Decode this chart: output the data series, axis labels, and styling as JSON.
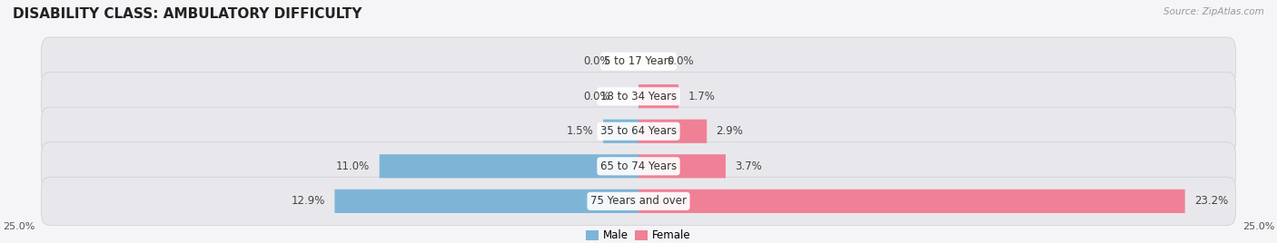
{
  "title": "DISABILITY CLASS: AMBULATORY DIFFICULTY",
  "source": "Source: ZipAtlas.com",
  "categories": [
    "5 to 17 Years",
    "18 to 34 Years",
    "35 to 64 Years",
    "65 to 74 Years",
    "75 Years and over"
  ],
  "male_values": [
    0.0,
    0.0,
    1.5,
    11.0,
    12.9
  ],
  "female_values": [
    0.0,
    1.7,
    2.9,
    3.7,
    23.2
  ],
  "male_color": "#7eb5d6",
  "female_color": "#f08096",
  "row_bg_color": "#e8e8ec",
  "row_border_color": "#d0d0d8",
  "max_val": 25.0,
  "title_fontsize": 11,
  "label_fontsize": 8.5,
  "value_fontsize": 8.5,
  "axis_label_left": "25.0%",
  "axis_label_right": "25.0%",
  "background_color": "#f5f5f7"
}
